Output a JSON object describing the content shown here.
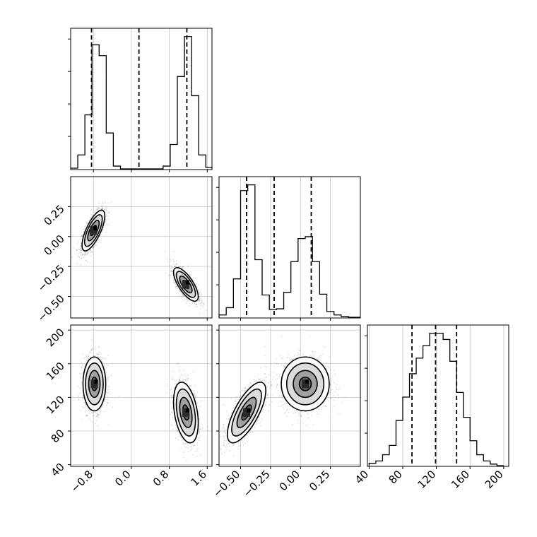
{
  "chart_data": {
    "type": "scatter",
    "layout": "corner-plot",
    "grid": true,
    "params": [
      {
        "range": [
          -1.28,
          1.7
        ],
        "ticks": [
          -0.8,
          0.0,
          0.8,
          1.6
        ],
        "tick_labels": [
          "−0.8",
          "0.0",
          "0.8",
          "1.6"
        ],
        "quantiles": [
          -0.84,
          0.16,
          1.17
        ],
        "hist": {
          "edges": [
            -1.28,
            -1.13,
            -0.98,
            -0.83,
            -0.68,
            -0.53,
            -0.38,
            -0.23,
            -0.08,
            0.07,
            0.22,
            0.37,
            0.52,
            0.67,
            0.82,
            0.97,
            1.12,
            1.27,
            1.42,
            1.57,
            1.7
          ],
          "counts": [
            2,
            40,
            155,
            356,
            325,
            103,
            8,
            0,
            0,
            0,
            0,
            0,
            0,
            8,
            70,
            265,
            380,
            210,
            40,
            4
          ]
        }
      },
      {
        "range": [
          -0.68,
          0.5
        ],
        "ticks": [
          -0.5,
          -0.25,
          0.0,
          0.25
        ],
        "tick_labels": [
          "−0.50",
          "−0.25",
          "0.00",
          "0.25"
        ],
        "quantiles": [
          -0.45,
          -0.22,
          0.09
        ],
        "hist": {
          "edges": [
            -0.68,
            -0.62,
            -0.56,
            -0.5,
            -0.44,
            -0.38,
            -0.32,
            -0.26,
            -0.2,
            -0.14,
            -0.08,
            -0.02,
            0.04,
            0.1,
            0.16,
            0.22,
            0.28,
            0.34,
            0.4,
            0.5
          ],
          "counts": [
            6,
            25,
            100,
            330,
            345,
            150,
            58,
            20,
            22,
            65,
            145,
            205,
            210,
            145,
            60,
            15,
            6,
            2,
            0
          ]
        }
      },
      {
        "range": [
          38,
          206
        ],
        "ticks": [
          40,
          80,
          120,
          160,
          200
        ],
        "tick_labels": [
          "40",
          "80",
          "120",
          "160",
          "200"
        ],
        "quantiles": [
          91,
          119,
          144
        ],
        "hist": {
          "edges": [
            40,
            48,
            56,
            64,
            72,
            80,
            88,
            96,
            104,
            112,
            120,
            128,
            136,
            144,
            152,
            160,
            168,
            176,
            184,
            192,
            200
          ],
          "counts": [
            3,
            6,
            14,
            26,
            58,
            88,
            118,
            138,
            154,
            170,
            170,
            162,
            134,
            94,
            62,
            32,
            14,
            6,
            2,
            0
          ]
        }
      }
    ],
    "pairs": [
      {
        "row": 1,
        "col": 0,
        "modes": [
          {
            "cx": -0.8,
            "cy": 0.05,
            "sx": 0.12,
            "sy": 0.085,
            "rho": 0.72,
            "weight": 0.5
          },
          {
            "cx": 1.15,
            "cy": -0.4,
            "sx": 0.13,
            "sy": 0.07,
            "rho": -0.72,
            "weight": 0.5
          }
        ]
      },
      {
        "row": 2,
        "col": 0,
        "modes": [
          {
            "cx": -0.78,
            "cy": 136,
            "sx": 0.12,
            "sy": 16,
            "rho": 0.0,
            "weight": 0.5
          },
          {
            "cx": 1.15,
            "cy": 102,
            "sx": 0.13,
            "sy": 18,
            "rho": -0.35,
            "weight": 0.5
          }
        ]
      },
      {
        "row": 2,
        "col": 1,
        "modes": [
          {
            "cx": -0.45,
            "cy": 102,
            "sx": 0.08,
            "sy": 18,
            "rho": 0.72,
            "weight": 0.5
          },
          {
            "cx": 0.04,
            "cy": 136,
            "sx": 0.1,
            "sy": 16,
            "rho": 0.0,
            "weight": 0.5
          }
        ]
      }
    ]
  }
}
